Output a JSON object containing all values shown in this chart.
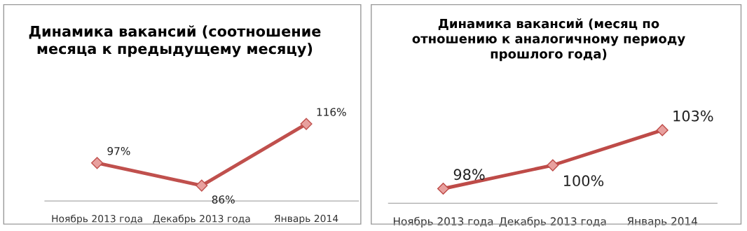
{
  "chart_data": [
    {
      "type": "line",
      "title": "Динамика вакансий (соотношение\nмесяца к предыдущему месяцу)",
      "categories": [
        "Ноябрь 2013 года",
        "Декабрь 2013 года",
        "Январь 2014"
      ],
      "marker": "diamond",
      "series": [
        {
          "color": "#c0504d",
          "values": [
            97,
            86,
            116
          ],
          "value_labels": [
            "97%",
            "86%",
            "116%"
          ]
        }
      ],
      "grid": false,
      "legend": false
    },
    {
      "type": "line",
      "title": "Динамика вакансий (месяц по\nотношению к аналогичному периоду\nпрошлого года)",
      "categories": [
        "Ноябрь 2013 года",
        "Декабрь 2013 года",
        "Январь 2014"
      ],
      "marker": "diamond",
      "series": [
        {
          "color": "#be4b48",
          "values": [
            98,
            100,
            103
          ],
          "value_labels": [
            "98%",
            "100%",
            "103%"
          ]
        }
      ],
      "grid": false,
      "legend": false
    }
  ]
}
